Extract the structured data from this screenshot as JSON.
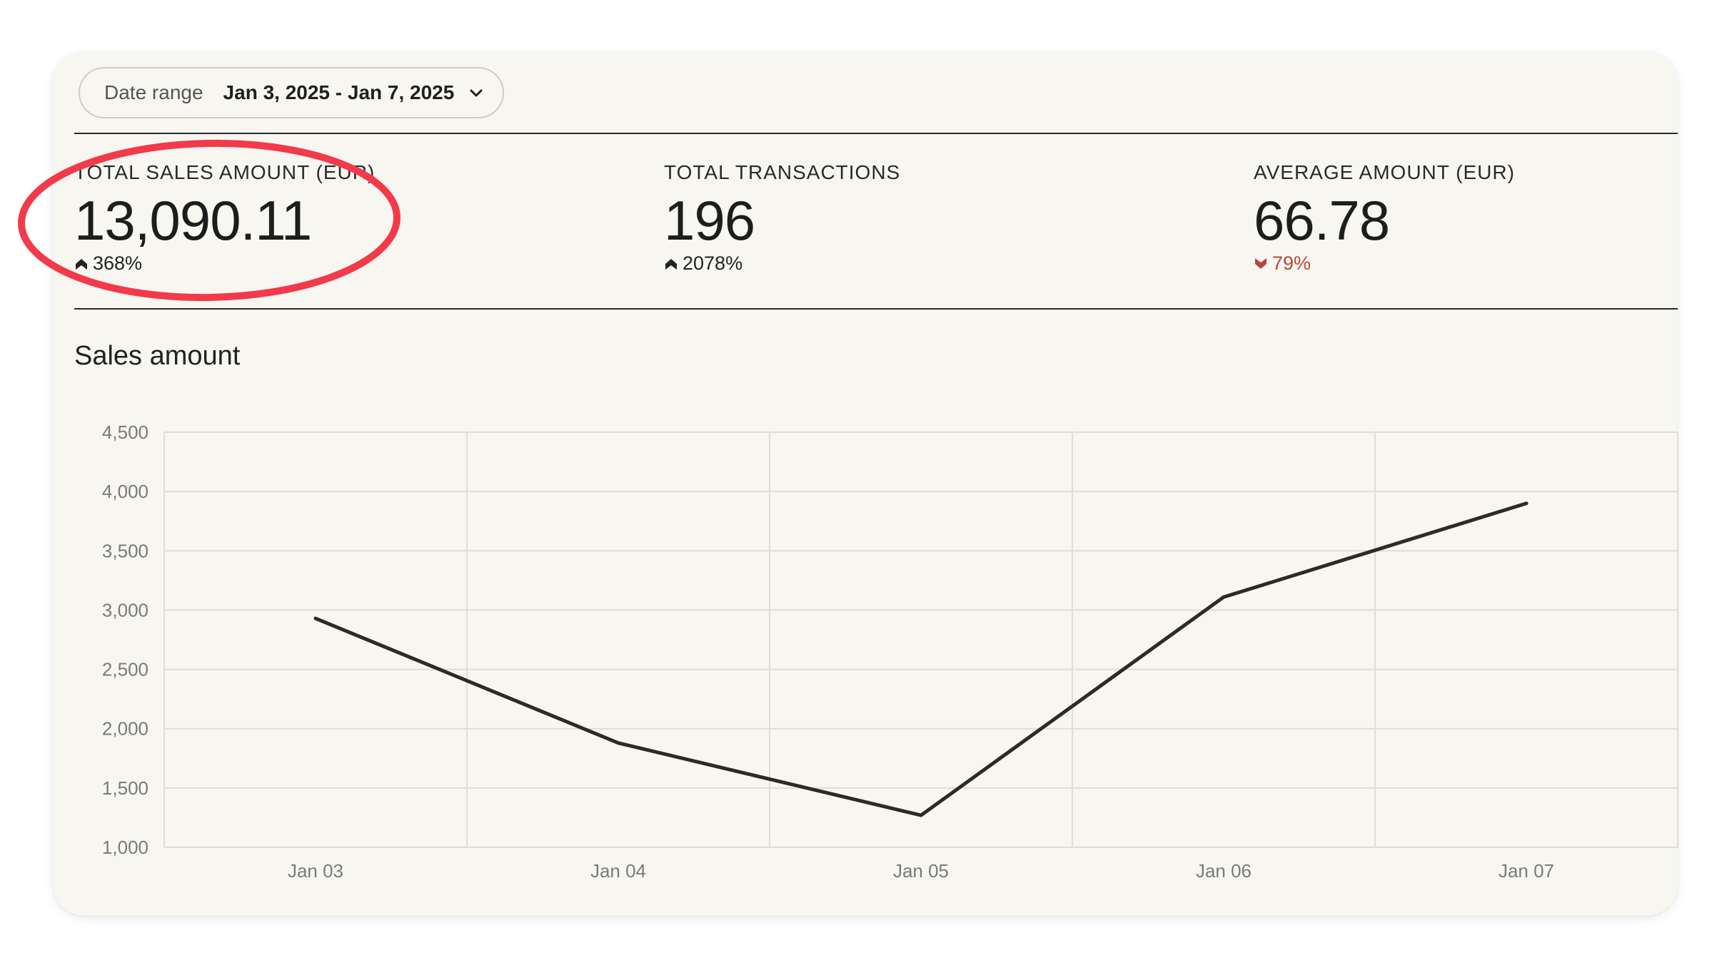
{
  "date_range": {
    "label": "Date range",
    "value": "Jan 3, 2025 - Jan 7, 2025",
    "icon": "chevron-down-icon"
  },
  "kpis": [
    {
      "label": "TOTAL SALES AMOUNT (EUR)",
      "value": "13,090.11",
      "change": "368%",
      "direction": "up"
    },
    {
      "label": "TOTAL TRANSACTIONS",
      "value": "196",
      "change": "2078%",
      "direction": "up"
    },
    {
      "label": "AVERAGE AMOUNT (EUR)",
      "value": "66.78",
      "change": "79%",
      "direction": "down"
    }
  ],
  "colors": {
    "card_bg": "#f7f6f0",
    "line": "#2d2b27",
    "down": "#b5483a",
    "annotation": "#f23a4b"
  },
  "chart_title": "Sales amount",
  "chart_data": {
    "type": "line",
    "title": "Sales amount",
    "xlabel": "",
    "ylabel": "",
    "categories": [
      "Jan 03",
      "Jan 04",
      "Jan 05",
      "Jan 06",
      "Jan 07"
    ],
    "values": [
      2930,
      1880,
      1270,
      3110,
      3900
    ],
    "ylim": [
      1000,
      4500
    ],
    "yticks": [
      "1,000",
      "1,500",
      "2,000",
      "2,500",
      "3,000",
      "3,500",
      "4,000",
      "4,500"
    ],
    "grid": true
  }
}
